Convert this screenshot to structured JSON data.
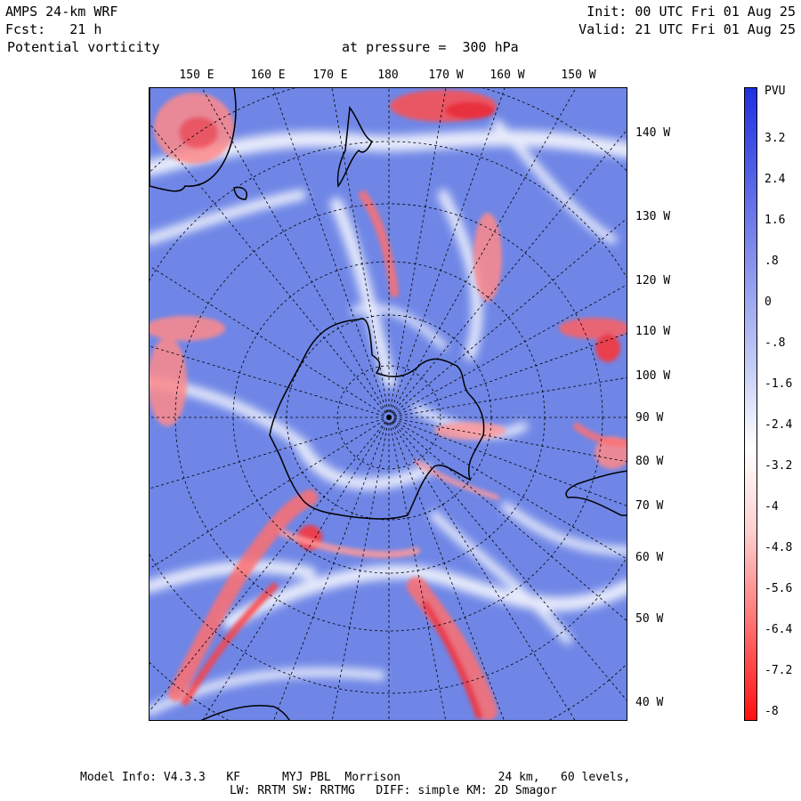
{
  "header": {
    "model": "AMPS 24-km WRF",
    "init": "Init: 00 UTC Fri 01 Aug 25",
    "fcst": "Fcst:   21 h",
    "valid": "Valid: 21 UTC Fri 01 Aug 25",
    "field": "Potential vorticity",
    "level": "at pressure =  300 hPa"
  },
  "lon_labels_top": [
    "150 E",
    "160 E",
    "170 E",
    "180",
    "170 W",
    "160 W",
    "150 W"
  ],
  "lon_labels_right": [
    "140 W",
    "130 W",
    "120 W",
    "110 W",
    "100 W",
    "90 W",
    "80 W",
    "70 W",
    "60 W",
    "50 W",
    "40 W"
  ],
  "colorbar": {
    "units": "PVU",
    "ticks": [
      "3.2",
      "2.4",
      "1.6",
      ".8",
      "0",
      "-.8",
      "-1.6",
      "-2.4",
      "-3.2",
      "-4",
      "-4.8",
      "-5.6",
      "-6.4",
      "-7.2",
      "-8"
    ],
    "range": [
      -8,
      4
    ],
    "colors": {
      "positive": "#2030e0",
      "neutral": "#ffffff",
      "negative": "#ff1010",
      "field_base": "#6f86e6"
    }
  },
  "footer": {
    "line1": "Model Info: V4.3.3   KF      MYJ PBL  Morrison              24 km,   60 levels,",
    "line2": "LW: RRTM SW: RRTMG   DIFF: simple KM: 2D Smagor"
  }
}
